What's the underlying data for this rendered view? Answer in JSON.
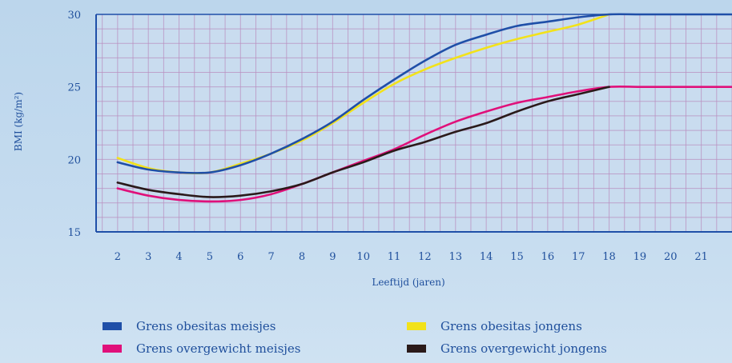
{
  "chart_data": {
    "type": "line",
    "xlabel": "Leeftijd (jaren)",
    "ylabel": "BMI (kg/m²)",
    "xlim": [
      1.3,
      22
    ],
    "ylim": [
      15,
      30
    ],
    "x_ticks": [
      "2",
      "3",
      "4",
      "5",
      "6",
      "7",
      "8",
      "9",
      "10",
      "11",
      "12",
      "13",
      "14",
      "15",
      "16",
      "17",
      "18",
      "19",
      "20",
      "21"
    ],
    "y_ticks": [
      "15",
      "20",
      "25",
      "30"
    ],
    "grid": true,
    "legend_position": "bottom",
    "series": [
      {
        "name": "Grens obesitas meisjes",
        "color": "#1f4fa8",
        "x": [
          2,
          3,
          4,
          5,
          6,
          7,
          8,
          9,
          10,
          11,
          12,
          13,
          14,
          15,
          16,
          17,
          18,
          19,
          20,
          21,
          22
        ],
        "y": [
          19.8,
          19.3,
          19.1,
          19.1,
          19.6,
          20.4,
          21.4,
          22.6,
          24.1,
          25.5,
          26.8,
          27.9,
          28.6,
          29.2,
          29.5,
          29.8,
          30,
          30,
          30,
          30,
          30
        ]
      },
      {
        "name": "Grens obesitas jongens",
        "color": "#f2e21a",
        "x": [
          2,
          3,
          4,
          5,
          6,
          7,
          8,
          9,
          10,
          11,
          12,
          13,
          14,
          15,
          16,
          17,
          18
        ],
        "y": [
          20.1,
          19.4,
          19.1,
          19.1,
          19.7,
          20.4,
          21.3,
          22.5,
          23.9,
          25.2,
          26.2,
          27.0,
          27.7,
          28.3,
          28.8,
          29.3,
          30
        ]
      },
      {
        "name": "Grens overgewicht meisjes",
        "color": "#e0107a",
        "x": [
          2,
          3,
          4,
          5,
          6,
          7,
          8,
          9,
          10,
          11,
          12,
          13,
          14,
          15,
          16,
          17,
          18,
          19,
          20,
          21,
          22
        ],
        "y": [
          18.0,
          17.5,
          17.2,
          17.1,
          17.2,
          17.6,
          18.3,
          19.1,
          19.9,
          20.7,
          21.7,
          22.6,
          23.3,
          23.9,
          24.3,
          24.7,
          25,
          25,
          25,
          25,
          25
        ]
      },
      {
        "name": "Grens overgewicht jongens",
        "color": "#2a1a1a",
        "x": [
          2,
          3,
          4,
          5,
          6,
          7,
          8,
          9,
          10,
          11,
          12,
          13,
          14,
          15,
          16,
          17,
          18
        ],
        "y": [
          18.4,
          17.9,
          17.6,
          17.4,
          17.5,
          17.8,
          18.3,
          19.1,
          19.8,
          20.6,
          21.2,
          21.9,
          22.5,
          23.3,
          24.0,
          24.5,
          25
        ]
      }
    ]
  },
  "legend": [
    {
      "label": "Grens obesitas meisjes",
      "color": "#1f4fa8"
    },
    {
      "label": "Grens overgewicht meisjes",
      "color": "#e0107a"
    },
    {
      "label": "Grens obesitas jongens",
      "color": "#f2e21a"
    },
    {
      "label": "Grens overgewicht jongens",
      "color": "#2a1a1a"
    }
  ]
}
